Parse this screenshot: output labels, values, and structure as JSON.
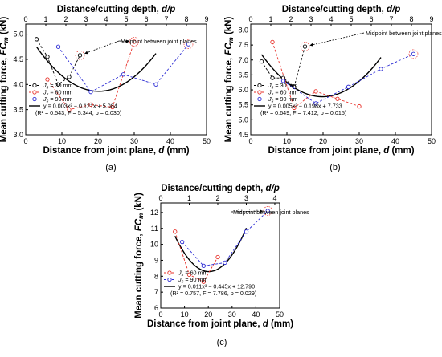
{
  "chart_data": [
    {
      "type": "scatter",
      "panel_label": "(a)",
      "xlabel_bottom": "Distance from joint plane, d (mm)",
      "xlabel_top": "Distance/cutting depth, d/p",
      "ylabel": "Mean cutting force, FCm (kN)",
      "xlim": [
        0,
        50
      ],
      "ylim": [
        3.0,
        5.2
      ],
      "xticks": [
        "0",
        "10",
        "20",
        "30",
        "40",
        "50"
      ],
      "yticks": [
        "3.0",
        "3.5",
        "4.0",
        "4.5",
        "5.0"
      ],
      "top_xlim": [
        0,
        9
      ],
      "top_xticks": [
        "0",
        "1",
        "2",
        "3",
        "4",
        "5",
        "6",
        "7",
        "8",
        "9"
      ],
      "annotation": "Midpoint between joint planes",
      "series": [
        {
          "name": "Js = 30 mm",
          "color": "#000000",
          "x": [
            3,
            6,
            9,
            12,
            15
          ],
          "y": [
            4.9,
            4.55,
            4.0,
            4.15,
            4.58
          ],
          "highlight_index": 4
        },
        {
          "name": "Js = 60 mm",
          "color": "#e8312a",
          "x": [
            6,
            12,
            18,
            24,
            30
          ],
          "y": [
            4.1,
            3.5,
            3.6,
            3.55,
            4.85
          ],
          "highlight_index": 4
        },
        {
          "name": "Js = 90 mm",
          "color": "#2b2bd4",
          "x": [
            9,
            18,
            27,
            36,
            45
          ],
          "y": [
            4.75,
            3.85,
            4.2,
            4.0,
            4.8
          ],
          "highlight_index": 4
        }
      ],
      "fit": {
        "a": 0.003,
        "b": -0.121,
        "c": 5.084,
        "x_range": [
          3,
          36
        ],
        "label": "y = 0.003x² − 0.121x + 5.084",
        "stats": "(R² = 0.543, F = 5.344, p = 0.030)"
      }
    },
    {
      "type": "scatter",
      "panel_label": "(b)",
      "xlabel_bottom": "Distance from joint plane, d (mm)",
      "xlabel_top": "Distance/cutting depth, d/p",
      "ylabel": "Mean cutting force, FCm (kN)",
      "xlim": [
        0,
        50
      ],
      "ylim": [
        4.5,
        8.2
      ],
      "xticks": [
        "0",
        "10",
        "20",
        "30",
        "40",
        "50"
      ],
      "yticks": [
        "4.5",
        "5.0",
        "5.5",
        "6.0",
        "6.5",
        "7.0",
        "7.5",
        "8.0"
      ],
      "top_xlim": [
        0,
        9
      ],
      "top_xticks": [
        "0",
        "1",
        "2",
        "3",
        "4",
        "5",
        "6",
        "7",
        "8",
        "9"
      ],
      "annotation": "Midpoint between joint planes",
      "series": [
        {
          "name": "Js = 30 mm",
          "color": "#000000",
          "x": [
            3,
            6,
            9,
            12,
            15
          ],
          "y": [
            6.95,
            6.4,
            6.4,
            6.1,
            7.45
          ],
          "highlight_index": 4
        },
        {
          "name": "Js = 60 mm",
          "color": "#e8312a",
          "x": [
            6,
            12,
            18,
            24,
            30
          ],
          "y": [
            7.6,
            5.4,
            5.95,
            5.7,
            5.45
          ],
          "highlight_index": -1
        },
        {
          "name": "Js = 90 mm",
          "color": "#2b2bd4",
          "x": [
            9,
            18,
            27,
            36,
            45
          ],
          "y": [
            6.3,
            5.55,
            6.1,
            6.7,
            7.2
          ],
          "highlight_index": 4
        }
      ],
      "fit": {
        "a": 0.005,
        "b": -0.198,
        "c": 7.733,
        "x_range": [
          3,
          36
        ],
        "label": "y = 0.005x² − 0.198x + 7.733",
        "stats": "(R² = 0.649, F = 7.412, p = 0.015)"
      }
    },
    {
      "type": "scatter",
      "panel_label": "(c)",
      "xlabel_bottom": "Distance from joint plane, d (mm)",
      "xlabel_top": "Distance/cutting depth, d/p",
      "ylabel": "Mean cutting force, FCm (kN)",
      "xlim": [
        0,
        50
      ],
      "ylim": [
        6,
        12.6
      ],
      "xticks": [
        "0",
        "10",
        "20",
        "30",
        "40",
        "50"
      ],
      "yticks": [
        "6",
        "7",
        "8",
        "9",
        "10",
        "11",
        "12"
      ],
      "top_xlim": [
        0,
        4.17
      ],
      "top_xticks": [
        "0",
        "1",
        "2",
        "3",
        "4"
      ],
      "annotation": "Midpoint between joint planes",
      "series": [
        {
          "name": "Js = 60 mm",
          "color": "#e8312a",
          "x": [
            6,
            12,
            18,
            24
          ],
          "y": [
            10.8,
            8.1,
            7.65,
            9.2
          ],
          "highlight_index": -1
        },
        {
          "name": "Js = 90 mm",
          "color": "#2b2bd4",
          "x": [
            9,
            18,
            27,
            36,
            45
          ],
          "y": [
            10.15,
            8.65,
            8.85,
            10.8,
            12.1
          ],
          "highlight_index": 4
        }
      ],
      "fit": {
        "a": 0.011,
        "b": -0.445,
        "c": 12.79,
        "x_range": [
          6,
          36
        ],
        "label": "y = 0.011x² − 0.445x + 12.790",
        "stats": "(R² = 0.757, F = 7.786, p = 0.029)"
      }
    }
  ]
}
